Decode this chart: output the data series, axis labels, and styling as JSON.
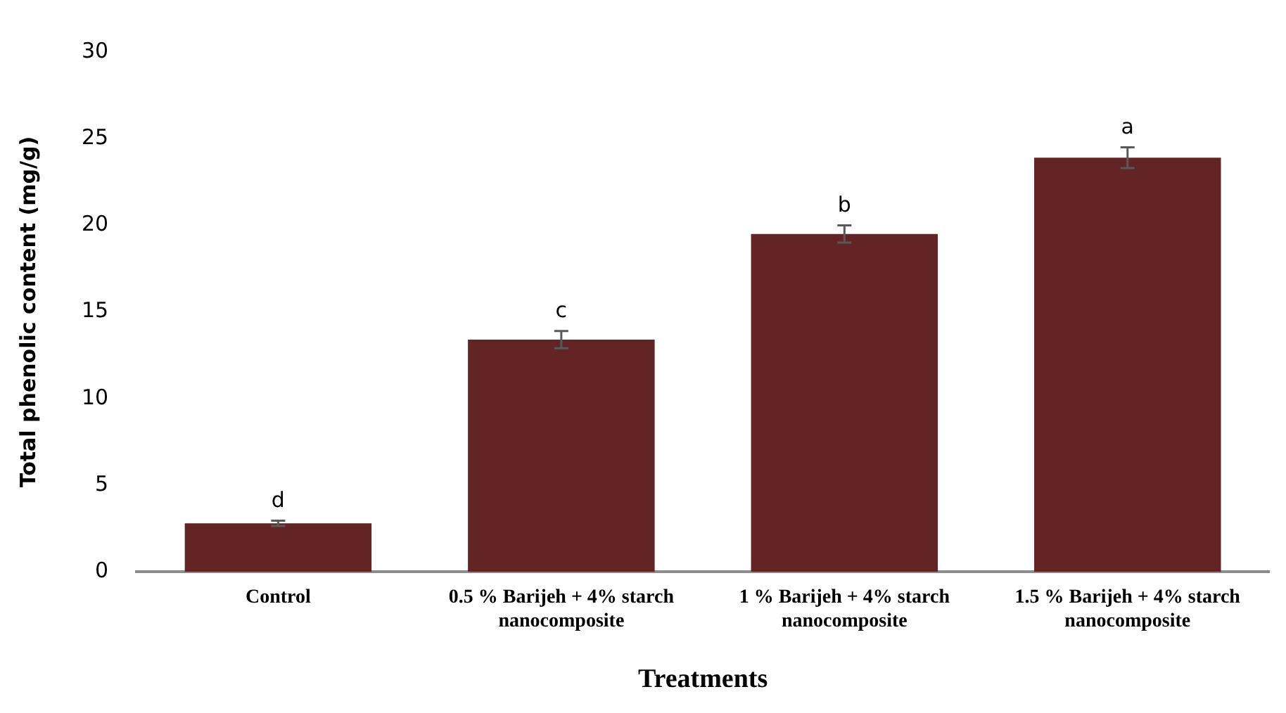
{
  "chart_data": {
    "type": "bar",
    "xlabel": "Treatments",
    "ylabel": "Total phenolic content (mg/g)",
    "categories": [
      "Control",
      "0.5 % Barijeh + 4% starch nanocomposite",
      "1 % Barijeh + 4% starch nanocomposite",
      "1.5 % Barijeh + 4% starch nanocomposite"
    ],
    "values": [
      2.8,
      13.4,
      19.5,
      23.9
    ],
    "errors": [
      0.15,
      0.5,
      0.5,
      0.6
    ],
    "color": "#632426",
    "ylim": [
      0,
      30
    ],
    "yticks": [
      0,
      5,
      10,
      15,
      20,
      25,
      30
    ],
    "grid": false,
    "legend": false,
    "annotations": [
      {
        "text": "d",
        "x": "Control",
        "y": 2.8
      },
      {
        "text": "c",
        "x": "0.5 % Barijeh + 4% starch nanocomposite",
        "y": 13.4
      },
      {
        "text": "b",
        "x": "1 % Barijeh + 4% starch nanocomposite",
        "y": 19.5
      },
      {
        "text": "a",
        "x": "1.5 % Barijeh + 4% starch nanocomposite",
        "y": 23.9
      }
    ]
  }
}
